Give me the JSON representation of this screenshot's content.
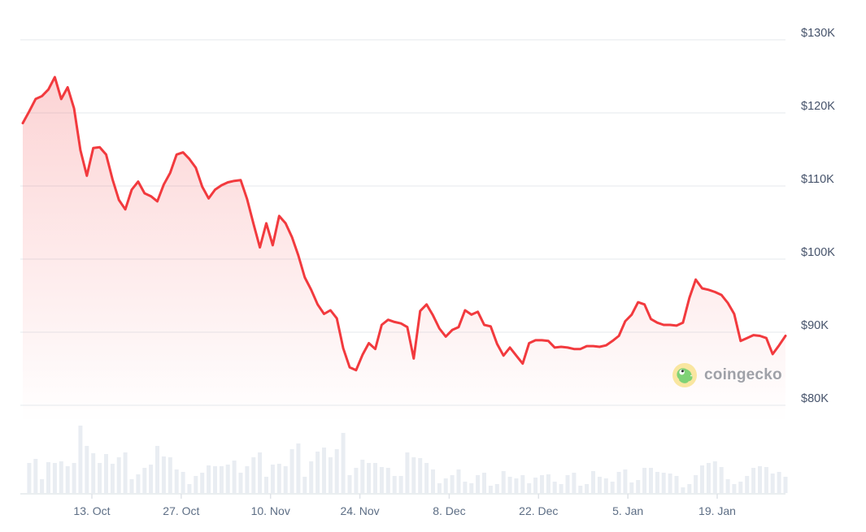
{
  "watermark": {
    "text": "coingecko",
    "icon_colors": {
      "circle": "#f9e6a0",
      "body": "#7fd276",
      "body_edge": "#5bbc5e",
      "eye": "#ffffff",
      "pupil": "#2d3436"
    },
    "text_color": "#9fa1a8"
  },
  "colors": {
    "line": "#f23a3e",
    "area_top": "rgba(242,58,62,0.24)",
    "area_bottom": "rgba(242,58,62,0)",
    "gridline": "#eef1f4",
    "baseline": "#e4e8ec",
    "tick": "#dfe3e8",
    "volume_bar": "#e9edf2",
    "y_label": "#46536b",
    "x_label": "#5d6e85"
  },
  "chart_data": {
    "type": "line",
    "subtype": "area line with volume bars",
    "title": "",
    "xlabel": "",
    "ylabel": "",
    "y_axis": {
      "tick_labels": [
        "$130K",
        "$120K",
        "$110K",
        "$100K",
        "$90K",
        "$80K"
      ],
      "tick_values_K": [
        130,
        120,
        110,
        100,
        90,
        80
      ],
      "range_K": [
        80,
        130
      ],
      "grid": true
    },
    "x_axis": {
      "tick_labels": [
        "13. Oct",
        "27. Oct",
        "10. Nov",
        "24. Nov",
        "8. Dec",
        "22. Dec",
        "5. Jan",
        "19. Jan"
      ],
      "tick_interval_days": 14
    },
    "series": [
      {
        "name": "price_usd_thousands",
        "values": [
          118.6,
          120.2,
          121.9,
          122.3,
          123.2,
          124.9,
          121.9,
          123.5,
          120.6,
          114.9,
          111.4,
          115.2,
          115.3,
          114.3,
          110.9,
          108.1,
          106.8,
          109.5,
          110.6,
          109.0,
          108.6,
          107.9,
          110.2,
          111.8,
          114.3,
          114.6,
          113.7,
          112.5,
          109.9,
          108.3,
          109.5,
          110.1,
          110.5,
          110.7,
          110.8,
          108.2,
          104.8,
          101.6,
          104.9,
          101.9,
          105.9,
          104.9,
          103.0,
          100.5,
          97.5,
          95.8,
          93.8,
          92.5,
          93.0,
          91.9,
          87.8,
          85.2,
          84.8,
          86.9,
          88.5,
          87.7,
          91.0,
          91.7,
          91.4,
          91.2,
          90.7,
          86.4,
          92.9,
          93.8,
          92.3,
          90.5,
          89.4,
          90.3,
          90.7,
          93.0,
          92.4,
          92.8,
          91.0,
          90.8,
          88.4,
          86.8,
          87.9,
          86.8,
          85.7,
          88.5,
          88.9,
          88.9,
          88.8,
          87.9,
          88.0,
          87.9,
          87.7,
          87.7,
          88.1,
          88.1,
          88.0,
          88.2,
          88.8,
          89.5,
          91.5,
          92.4,
          94.1,
          93.8,
          91.8,
          91.3,
          91.0,
          91.0,
          90.9,
          91.3,
          94.7,
          97.2,
          96.0,
          95.8,
          95.5,
          95.1,
          94.0,
          92.5,
          88.8,
          89.2,
          89.6,
          89.5,
          89.2,
          87.0,
          88.2,
          89.5
        ]
      },
      {
        "name": "volume_relative",
        "values": [
          0,
          37,
          42,
          17,
          38,
          37,
          39,
          33,
          37,
          83,
          58,
          49,
          37,
          48,
          36,
          44,
          50,
          17,
          23,
          31,
          35,
          58,
          45,
          44,
          29,
          26,
          11,
          21,
          25,
          34,
          33,
          33,
          35,
          40,
          25,
          33,
          44,
          50,
          20,
          35,
          36,
          33,
          54,
          61,
          20,
          39,
          51,
          56,
          44,
          54,
          74,
          22,
          31,
          41,
          37,
          37,
          32,
          31,
          21,
          21,
          50,
          44,
          43,
          37,
          29,
          12,
          18,
          22,
          29,
          14,
          12,
          22,
          25,
          9,
          11,
          27,
          20,
          18,
          22,
          12,
          19,
          22,
          23,
          14,
          11,
          22,
          25,
          9,
          11,
          27,
          20,
          18,
          14,
          26,
          29,
          13,
          16,
          31,
          31,
          26,
          25,
          24,
          21,
          7,
          11,
          22,
          34,
          37,
          39,
          32,
          17,
          11,
          14,
          21,
          31,
          33,
          32,
          24,
          26,
          20
        ]
      }
    ],
    "legend": {
      "visible": false
    }
  }
}
